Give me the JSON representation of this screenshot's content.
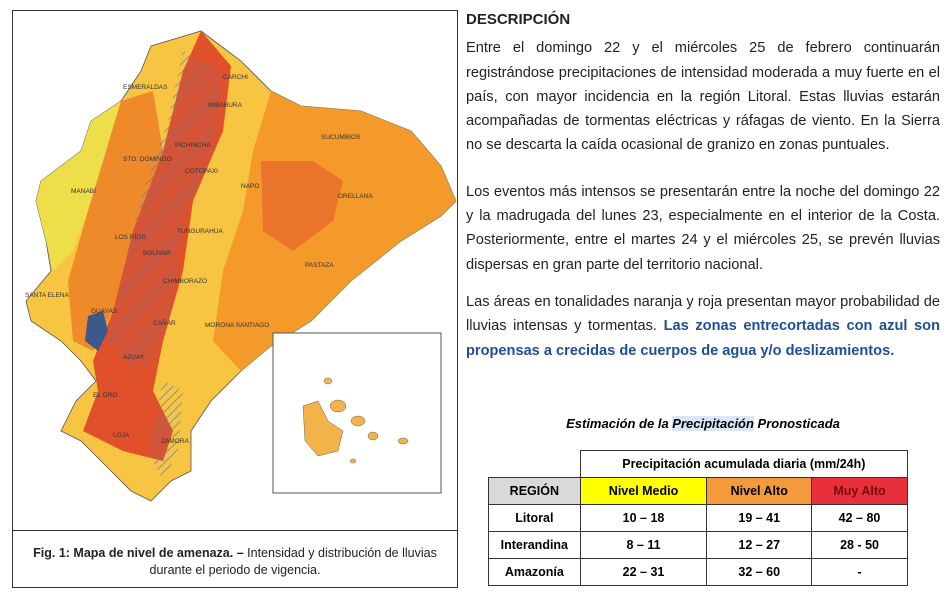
{
  "description": {
    "title": "DESCRIPCIÓN",
    "paragraphs": [
      "Entre el domingo 22 y el miércoles 25 de febrero continuarán registrándose precipitaciones de intensidad moderada a muy fuerte en el país, con mayor incidencia en la región Litoral. Estas lluvias estarán acompañadas de tormentas eléctricas y ráfagas de viento. En la Sierra no se descarta la caída ocasional de granizo en zonas puntuales.",
      "Los eventos más intensos se presentarán entre la noche del domingo 22 y la madrugada del lunes 23, especialmente en el interior de la Costa. Posteriormente, entre el martes 24 y el miércoles 25, se prevén lluvias dispersas en gran parte del territorio nacional.",
      {
        "normal": "Las áreas en tonalidades naranja y roja presentan mayor probabilidad de lluvias intensas y tormentas.",
        "highlight": "Las zonas entrecortadas con azul son propensas a crecidas de cuerpos de agua y/o deslizamientos."
      }
    ]
  },
  "figure": {
    "caption_bold": "Fig. 1: Mapa de nivel de amenaza. –",
    "caption": "Intensidad y distribución de lluvias durante el periodo de vigencia.",
    "map_labels": [
      "CARCHI",
      "ESMERALDAS",
      "IMBABURA",
      "PICHINCHA",
      "STO. DOMINGO",
      "MANABÍ",
      "COTOPAXI",
      "NAPO",
      "SUCUMBIOS",
      "ORELLANA",
      "LOS RÍOS",
      "TUNGURAHUA",
      "BOLÍVAR",
      "PASTAZA",
      "CHIMBORAZO",
      "SANTA ELENA",
      "GUAYAS",
      "MORONA SANTIAGO",
      "CAÑAR",
      "AZUAY",
      "EL ORO",
      "LOJA",
      "ZAMORA"
    ]
  },
  "table": {
    "caption": [
      "Estimación de la ",
      "Precipitación",
      " Pronosticada"
    ],
    "group_header": "Precipitación acumulada diaria (mm/24h)",
    "columns": [
      "REGIÓN",
      "Nivel Medio",
      "Nivel Alto",
      "Muy Alto"
    ],
    "rows": [
      [
        "Litoral",
        "10 – 18",
        "19 – 41",
        "42 – 80"
      ],
      [
        "Interandina",
        "8 – 11",
        "12 – 27",
        "28 - 50"
      ],
      [
        "Amazonía",
        "22 – 31",
        "32 – 60",
        "-"
      ]
    ]
  }
}
